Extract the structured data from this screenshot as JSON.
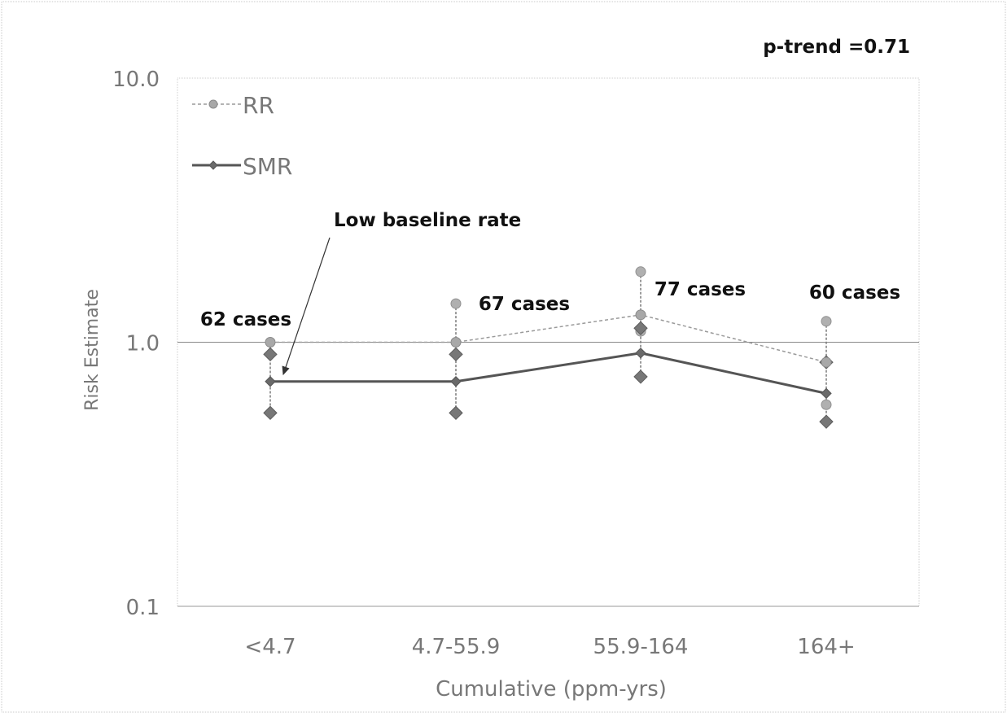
{
  "chart_data": {
    "type": "line",
    "ylabel": "Risk Estimate",
    "xlabel": "Cumulative (ppm-yrs)",
    "y_scale": "log",
    "ylim": [
      0.1,
      10.0
    ],
    "y_ticks": [
      {
        "value": 10.0,
        "label": "10.0"
      },
      {
        "value": 1.0,
        "label": "1.0"
      },
      {
        "value": 0.1,
        "label": "0.1"
      }
    ],
    "categories": [
      "<4.7",
      "4.7-55.9",
      "55.9-164",
      "164+"
    ],
    "reference_line": 1.0,
    "legend_position": "top-left",
    "series": [
      {
        "name": "RR",
        "style": "dashed-circle",
        "color": "#9a9a9a",
        "values": [
          1.0,
          1.0,
          1.27,
          0.84
        ],
        "ci_lower": [
          null,
          null,
          1.1,
          0.58
        ],
        "ci_upper": [
          null,
          1.4,
          1.85,
          1.2
        ]
      },
      {
        "name": "SMR",
        "style": "solid-diamond",
        "color": "#555555",
        "values": [
          0.71,
          0.71,
          0.91,
          0.64
        ],
        "ci_lower": [
          0.54,
          0.54,
          0.74,
          0.5
        ],
        "ci_upper": [
          0.9,
          0.9,
          1.13,
          0.84
        ]
      }
    ],
    "annotations": {
      "p_trend": "p-trend =0.71",
      "baseline_note": "Low baseline rate",
      "case_labels": [
        "62 cases",
        "67 cases",
        "77 cases",
        "60 cases"
      ]
    }
  }
}
